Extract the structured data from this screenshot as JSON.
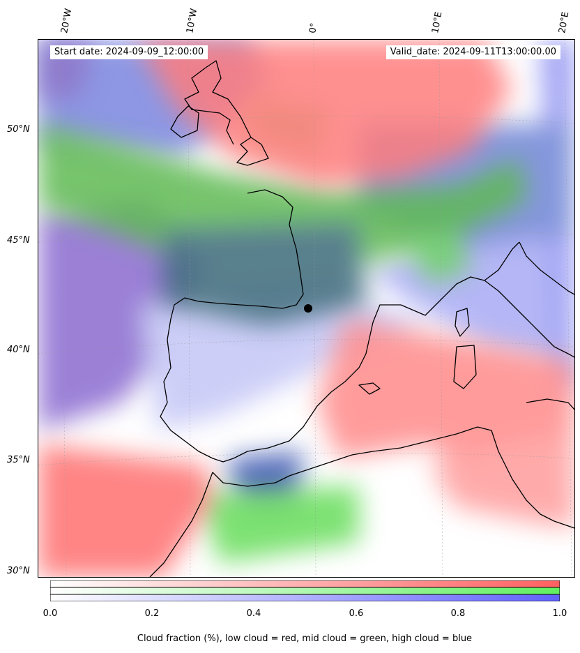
{
  "map": {
    "start_date": "Start date: 2024-09-09_12:00:00",
    "valid_date": "Valid_date: 2024-09-11T13:00:00.00",
    "lon_labels": [
      "20°W",
      "10°W",
      "0°",
      "10°E",
      "20°E"
    ],
    "lat_labels": [
      "50°N",
      "45°N",
      "40°N",
      "35°N",
      "30°N"
    ],
    "colors": {
      "low_cloud": "#ff7070",
      "mid_cloud": "#70f070",
      "high_cloud": "#7070ff",
      "coastline": "#000000"
    }
  },
  "colorbar": {
    "ticks": [
      "0.0",
      "0.2",
      "0.4",
      "0.6",
      "0.8",
      "1.0"
    ],
    "range": [
      0.0,
      1.0
    ]
  },
  "caption": "Cloud fraction (%), low cloud = red, mid cloud = green, high cloud = blue"
}
